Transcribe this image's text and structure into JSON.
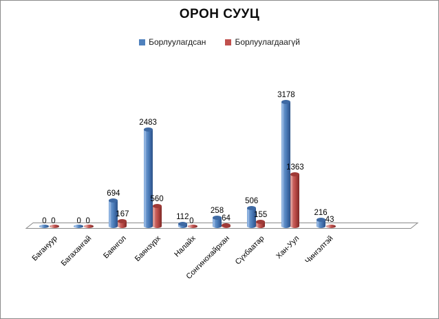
{
  "window": {
    "background": "#ffffff",
    "border_color": "#8a8a8a"
  },
  "chart_data": {
    "type": "bar",
    "style": "3d-cylinder",
    "title": "ОРОН СУУЦ",
    "categories": [
      "Багануур",
      "Багахангай",
      "Баянгол",
      "Баянзүрх",
      "Налайх",
      "Сонгинохайрхан",
      "Сүхбаатар",
      "Хан-Уул",
      "Чингэлтэй"
    ],
    "series": [
      {
        "name": "Борлуулагдсан",
        "color": "#4F81BD",
        "values": [
          0,
          0,
          694,
          2483,
          112,
          258,
          506,
          3178,
          216
        ]
      },
      {
        "name": "Борлуулагдаагүй",
        "color": "#C0504D",
        "values": [
          0,
          0,
          167,
          560,
          0,
          64,
          155,
          1363,
          43
        ]
      }
    ],
    "legend_position": "top",
    "grid": false,
    "data_labels": true,
    "xlabel": "",
    "ylabel": "",
    "ylim": [
      0,
      3500
    ]
  }
}
